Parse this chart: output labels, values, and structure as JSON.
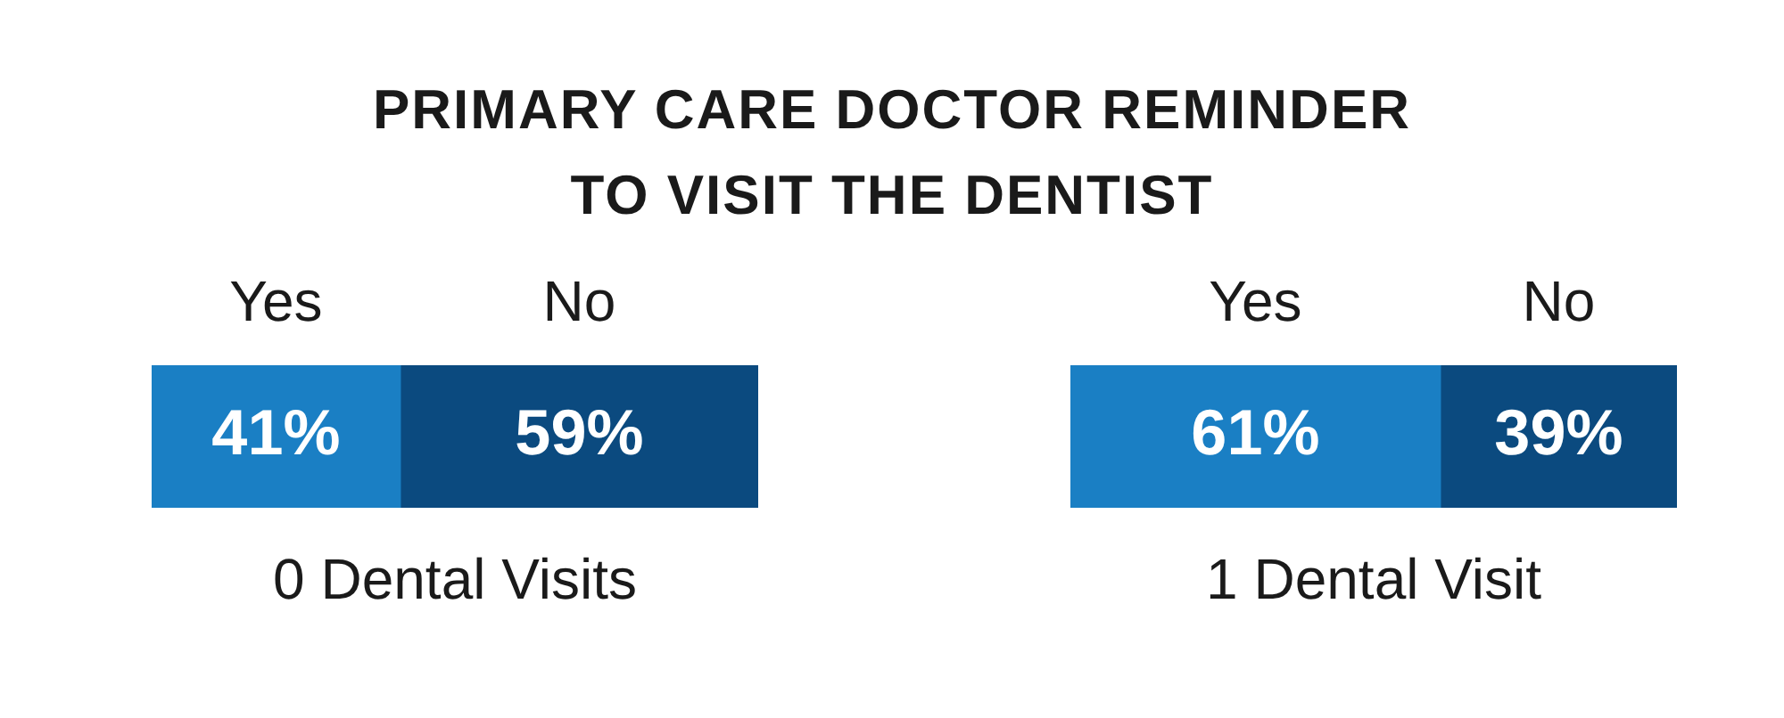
{
  "chart_data": [
    {
      "type": "bar",
      "title": "PRIMARY CARE DOCTOR REMINDER\nTO VISIT THE DENTIST",
      "orientation": "horizontal",
      "stacked": true,
      "categories": [
        "0 Dental Visits"
      ],
      "tick_labels": false,
      "series": [
        {
          "name": "Yes",
          "color": "#1a7fc4",
          "values": [
            41
          ],
          "value_labels": [
            "41%"
          ]
        },
        {
          "name": "No",
          "color": "#0b4a7f",
          "values": [
            59
          ],
          "value_labels": [
            "59%"
          ]
        }
      ]
    },
    {
      "type": "bar",
      "orientation": "horizontal",
      "stacked": true,
      "categories": [
        "1 Dental Visit"
      ],
      "tick_labels": false,
      "series": [
        {
          "name": "Yes",
          "color": "#1a7fc4",
          "values": [
            61
          ],
          "value_labels": [
            "61%"
          ]
        },
        {
          "name": "No",
          "color": "#0b4a7f",
          "values": [
            39
          ],
          "value_labels": [
            "39%"
          ]
        }
      ]
    }
  ]
}
